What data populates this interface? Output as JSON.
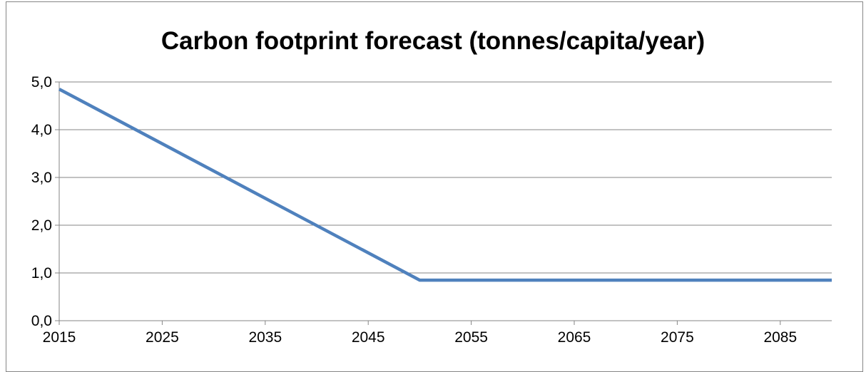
{
  "chart_data": {
    "type": "line",
    "title": "Carbon footprint forecast (tonnes/capita/year)",
    "xlabel": "",
    "ylabel": "",
    "xlim": [
      2015,
      2090
    ],
    "ylim": [
      0,
      5
    ],
    "y_tick_values": [
      0,
      1,
      2,
      3,
      4,
      5
    ],
    "y_tick_labels": [
      "0,0",
      "1,0",
      "2,0",
      "3,0",
      "4,0",
      "5,0"
    ],
    "x_tick_values": [
      2015,
      2025,
      2035,
      2045,
      2055,
      2065,
      2075,
      2085
    ],
    "x_tick_labels": [
      "2015",
      "2025",
      "2035",
      "2045",
      "2055",
      "2065",
      "2075",
      "2085"
    ],
    "grid": "horizontal",
    "legend": "none",
    "series": [
      {
        "color": "#4f81bd",
        "points": [
          {
            "x": 2015,
            "y": 4.85
          },
          {
            "x": 2050,
            "y": 0.85
          },
          {
            "x": 2090,
            "y": 0.85
          }
        ]
      }
    ]
  },
  "colors": {
    "gridline": "#868686",
    "axis": "#868686",
    "series": "#4f81bd"
  }
}
